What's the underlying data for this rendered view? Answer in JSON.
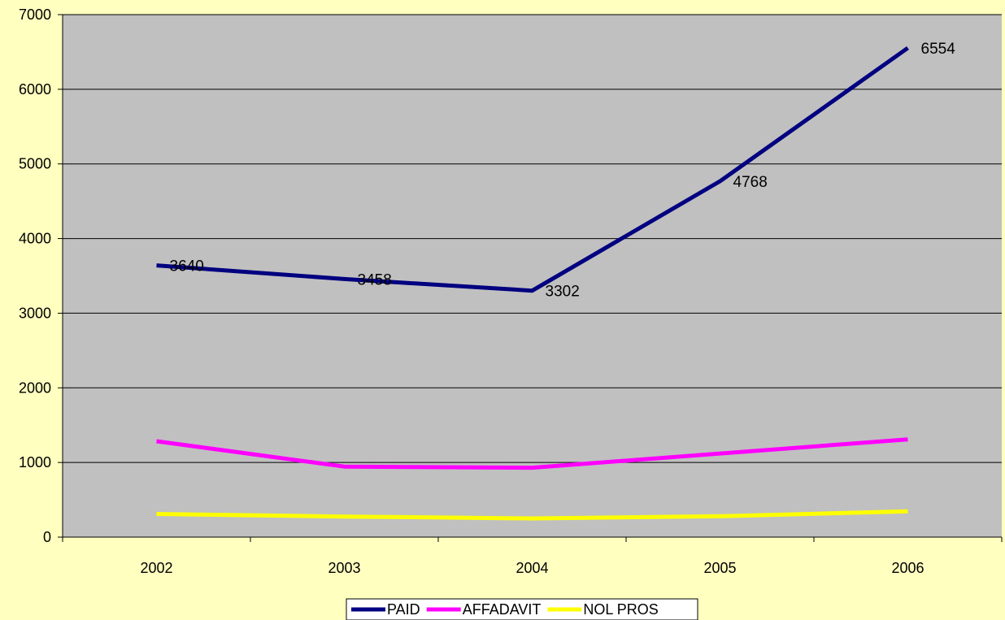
{
  "chart_data": {
    "type": "line",
    "categories": [
      "2002",
      "2003",
      "2004",
      "2005",
      "2006"
    ],
    "ylim": [
      0,
      7000
    ],
    "yticks": [
      0,
      1000,
      2000,
      3000,
      4000,
      5000,
      6000,
      7000
    ],
    "grid": true,
    "legend_position": "bottom",
    "plot_background": "#C0C0C0",
    "page_background": "#FFFFC0",
    "series": [
      {
        "name": "PAID",
        "color": "#000080",
        "values": [
          3640,
          3458,
          3302,
          4768,
          6554
        ],
        "labels": [
          "3640",
          "3458",
          "3302",
          "4768",
          "6554"
        ]
      },
      {
        "name": "AFFADAVIT",
        "color": "#FF00FF",
        "values": [
          1285,
          945,
          930,
          1120,
          1310
        ]
      },
      {
        "name": "NOL PROS",
        "color": "#FFFF00",
        "values": [
          310,
          275,
          250,
          280,
          345
        ]
      }
    ]
  }
}
